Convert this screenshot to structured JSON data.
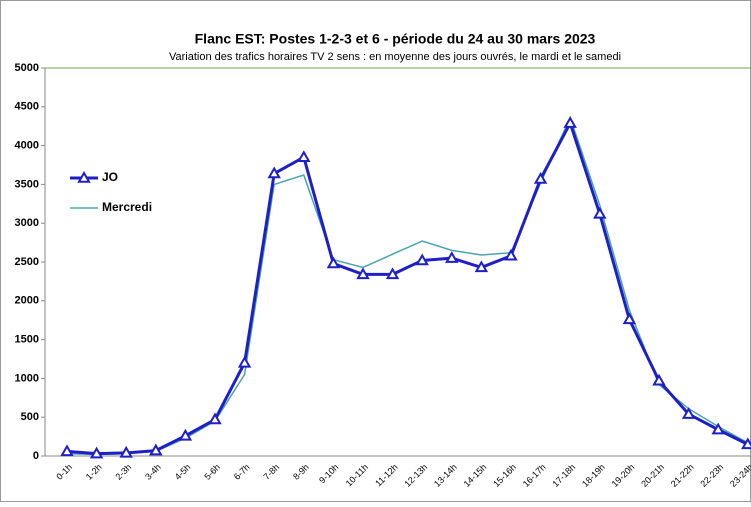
{
  "chart_data": {
    "type": "line",
    "title": "Flanc EST: Postes 1-2-3 et 6 - période du 24 au 30 mars 2023",
    "subtitle": "Variation des trafics horaires TV 2 sens  : en moyenne des jours ouvrés, le mardi et le samedi",
    "categories": [
      "0-1h",
      "1-2h",
      "2-3h",
      "3-4h",
      "4-5h",
      "5-6h",
      "6-7h",
      "7-8h",
      "8-9h",
      "9-10h",
      "10-11h",
      "11-12h",
      "12-13h",
      "13-14h",
      "14-15h",
      "15-16h",
      "16-17h",
      "17-18h",
      "18-19h",
      "19-20h",
      "20-21h",
      "21-22h",
      "22-23h",
      "23-24h"
    ],
    "series": [
      {
        "name": "JO",
        "color": "#1f1fc8",
        "marker": "triangle",
        "values": [
          60,
          30,
          40,
          70,
          260,
          470,
          1200,
          3640,
          3850,
          2480,
          2340,
          2340,
          2520,
          2550,
          2430,
          2580,
          3570,
          4290,
          3120,
          1760,
          970,
          540,
          340,
          150
        ]
      },
      {
        "name": "Mercredi",
        "color": "#4aa3b5",
        "marker": "none",
        "values": [
          30,
          20,
          30,
          60,
          230,
          450,
          1050,
          3500,
          3620,
          2530,
          2430,
          2600,
          2770,
          2650,
          2590,
          2620,
          3520,
          4360,
          3230,
          1880,
          920,
          610,
          380,
          170
        ]
      }
    ],
    "ylim": [
      0,
      5000
    ],
    "yticks": [
      0,
      500,
      1000,
      1500,
      2000,
      2500,
      3000,
      3500,
      4000,
      4500,
      5000
    ],
    "grid": false,
    "legend": "upper left"
  }
}
